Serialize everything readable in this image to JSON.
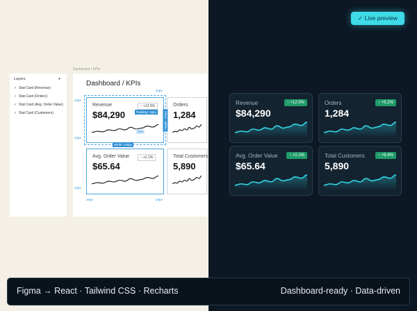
{
  "badge": "Live preview",
  "layers": {
    "title": "Layers",
    "add": "+",
    "items": [
      "Stat Card (Revenue)",
      "Stat Card (Orders)",
      "Stat Card (Avg. Order Value)",
      "Stat Card (Customers)"
    ]
  },
  "figma": {
    "breadcrumb": "Dashboard / KPIs",
    "title": "Dashboard / KPIs",
    "cards": [
      {
        "label": "Revenue",
        "value": "$84,290",
        "change": "↑ +12.5%"
      },
      {
        "label": "Orders",
        "value": "1,284"
      },
      {
        "label": "Avg. Order Value",
        "value": "$65.64",
        "change": "↑ +2.1%"
      },
      {
        "label": "Total Customers",
        "value": "5,890"
      }
    ],
    "annotations": {
      "spacing": "24px",
      "padding": "Padding: 16px",
      "inner": "16px",
      "width": "Width: 248px",
      "height": "Height: 104px"
    }
  },
  "preview": {
    "cards": [
      {
        "label": "Revenue",
        "value": "$84,290",
        "change": "↑ +12.5%"
      },
      {
        "label": "Orders",
        "value": "1,284",
        "change": "↑ +5.2%"
      },
      {
        "label": "Avg. Order Value",
        "value": "$65.64",
        "change": "↑ +2.1%"
      },
      {
        "label": "Total Customers",
        "value": "5,890",
        "change": "↑ +8.4%"
      }
    ]
  },
  "footer": {
    "left": "Figma → React · Tailwind CSS · Recharts",
    "right": "Dashboard-ready · Data-driven"
  }
}
